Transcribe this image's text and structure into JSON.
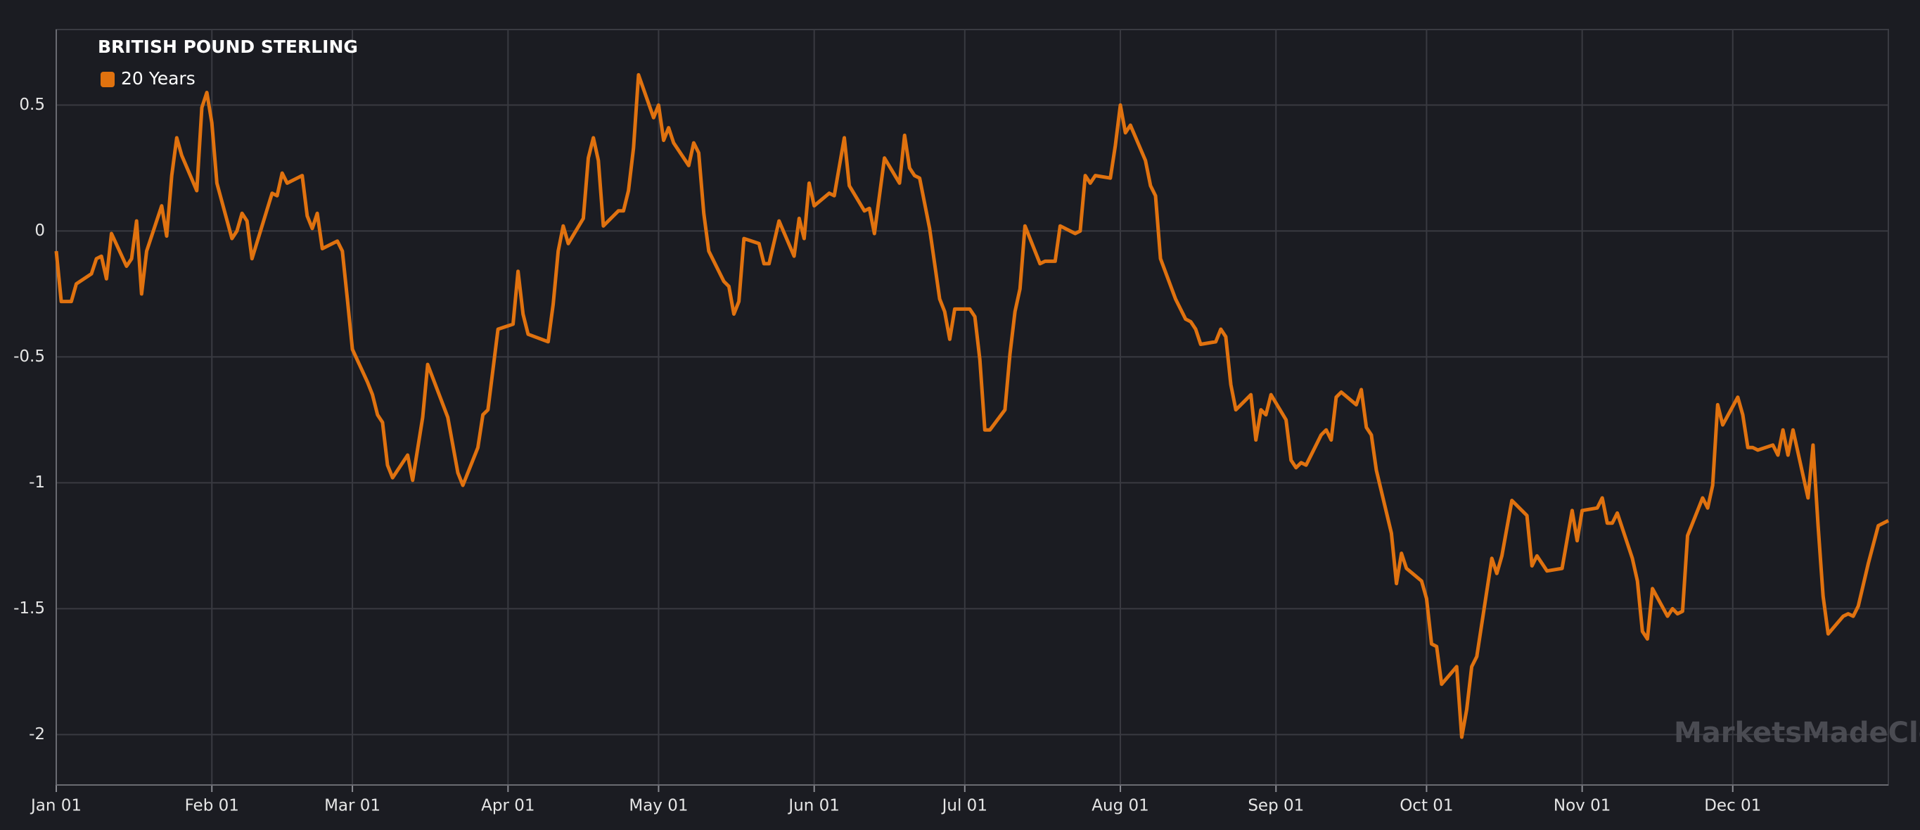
{
  "chart_data": {
    "type": "line",
    "title": "BRITISH POUND STERLING",
    "watermark": "MarketsMadeClear.com",
    "x": [
      0,
      1,
      3,
      4,
      7,
      8,
      9,
      10,
      11,
      14,
      15,
      16,
      17,
      18,
      21,
      22,
      23,
      24,
      25,
      28,
      29,
      30,
      31,
      32,
      35,
      36,
      37,
      38,
      39,
      43,
      44,
      45,
      46,
      49,
      50,
      51,
      52,
      53,
      56,
      57,
      58,
      59,
      62,
      63,
      64,
      65,
      66,
      67,
      70,
      71,
      73,
      74,
      78,
      80,
      81,
      84,
      85,
      86,
      88,
      91,
      92,
      93,
      94,
      98,
      99,
      100,
      101,
      102,
      105,
      106,
      107,
      108,
      109,
      111,
      112,
      113,
      114,
      115,
      116,
      119,
      120,
      121,
      122,
      123,
      126,
      127,
      128,
      129,
      130,
      133,
      134,
      135,
      136,
      137,
      140,
      141,
      142,
      144,
      147,
      148,
      149,
      150,
      151,
      154,
      155,
      157,
      158,
      161,
      162,
      163,
      165,
      168,
      169,
      170,
      171,
      172,
      174,
      176,
      177,
      178,
      179,
      182,
      183,
      184,
      185,
      186,
      189,
      190,
      191,
      192,
      193,
      196,
      197,
      199,
      200,
      203,
      204,
      205,
      206,
      207,
      210,
      211,
      212,
      213,
      214,
      217,
      218,
      219,
      220,
      223,
      225,
      226,
      227,
      228,
      231,
      232,
      233,
      234,
      235,
      237,
      238,
      239,
      240,
      241,
      242,
      245,
      246,
      247,
      248,
      249,
      252,
      253,
      254,
      255,
      256,
      259,
      260,
      261,
      262,
      263,
      266,
      267,
      268,
      269,
      272,
      273,
      274,
      275,
      276,
      279,
      280,
      281,
      282,
      283,
      286,
      287,
      288,
      290,
      293,
      294,
      295,
      297,
      300,
      302,
      303,
      304,
      307,
      308,
      309,
      310,
      311,
      314,
      315,
      316,
      317,
      318,
      321,
      322,
      323,
      324,
      325,
      328,
      329,
      330,
      331,
      332,
      335,
      336,
      337,
      338,
      339,
      342,
      343,
      344,
      345,
      346,
      349,
      350,
      351,
      352,
      353,
      356,
      357,
      358,
      359,
      361,
      363,
      365
    ],
    "series": [
      {
        "name": "20 Years",
        "color": "#e0720f",
        "values": [
          -0.08,
          -0.28,
          -0.28,
          -0.21,
          -0.17,
          -0.11,
          -0.1,
          -0.19,
          -0.01,
          -0.14,
          -0.11,
          0.04,
          -0.25,
          -0.08,
          0.1,
          -0.02,
          0.22,
          0.37,
          0.3,
          0.16,
          0.49,
          0.55,
          0.43,
          0.19,
          -0.03,
          0,
          0.07,
          0.04,
          -0.11,
          0.15,
          0.14,
          0.23,
          0.19,
          0.22,
          0.06,
          0.01,
          0.07,
          -0.07,
          -0.04,
          -0.08,
          -0.27,
          -0.47,
          -0.6,
          -0.65,
          -0.73,
          -0.76,
          -0.93,
          -0.98,
          -0.89,
          -0.99,
          -0.74,
          -0.53,
          -0.74,
          -0.96,
          -1.01,
          -0.86,
          -0.73,
          -0.71,
          -0.39,
          -0.37,
          -0.16,
          -0.33,
          -0.41,
          -0.44,
          -0.29,
          -0.08,
          0.02,
          -0.05,
          0.05,
          0.29,
          0.37,
          0.28,
          0.02,
          0.06,
          0.08,
          0.08,
          0.16,
          0.33,
          0.62,
          0.45,
          0.5,
          0.36,
          0.41,
          0.35,
          0.26,
          0.35,
          0.31,
          0.07,
          -0.08,
          -0.2,
          -0.22,
          -0.33,
          -0.28,
          -0.03,
          -0.05,
          -0.13,
          -0.13,
          0.04,
          -0.1,
          0.05,
          -0.03,
          0.19,
          0.1,
          0.15,
          0.14,
          0.37,
          0.18,
          0.08,
          0.09,
          -0.01,
          0.29,
          0.19,
          0.38,
          0.25,
          0.22,
          0.21,
          0.01,
          -0.27,
          -0.32,
          -0.43,
          -0.31,
          -0.31,
          -0.34,
          -0.51,
          -0.79,
          -0.79,
          -0.71,
          -0.49,
          -0.32,
          -0.23,
          0.02,
          -0.13,
          -0.12,
          -0.12,
          0.02,
          -0.01,
          0,
          0.22,
          0.19,
          0.22,
          0.21,
          0.34,
          0.5,
          0.39,
          0.42,
          0.28,
          0.18,
          0.14,
          -0.11,
          -0.27,
          -0.35,
          -0.36,
          -0.39,
          -0.45,
          -0.44,
          -0.39,
          -0.42,
          -0.61,
          -0.71,
          -0.67,
          -0.65,
          -0.83,
          -0.71,
          -0.73,
          -0.65,
          -0.75,
          -0.91,
          -0.94,
          -0.92,
          -0.93,
          -0.81,
          -0.79,
          -0.83,
          -0.66,
          -0.64,
          -0.69,
          -0.63,
          -0.78,
          -0.81,
          -0.95,
          -1.2,
          -1.4,
          -1.28,
          -1.34,
          -1.39,
          -1.46,
          -1.64,
          -1.65,
          -1.8,
          -1.73,
          -2.01,
          -1.9,
          -1.73,
          -1.69,
          -1.3,
          -1.36,
          -1.29,
          -1.07,
          -1.13,
          -1.33,
          -1.29,
          -1.35,
          -1.34,
          -1.11,
          -1.23,
          -1.11,
          -1.1,
          -1.06,
          -1.16,
          -1.16,
          -1.12,
          -1.3,
          -1.39,
          -1.59,
          -1.62,
          -1.42,
          -1.53,
          -1.5,
          -1.52,
          -1.51,
          -1.21,
          -1.06,
          -1.1,
          -1.01,
          -0.69,
          -0.77,
          -0.66,
          -0.73,
          -0.86,
          -0.86,
          -0.87,
          -0.85,
          -0.89,
          -0.79,
          -0.89,
          -0.79,
          -1.06,
          -0.85,
          -1.17,
          -1.45,
          -1.6,
          -1.53,
          -1.52,
          -1.53,
          -1.49,
          -1.32,
          -1.17,
          -1.15
        ]
      }
    ],
    "xlim": [
      0,
      365
    ],
    "xticks": [
      {
        "value": 0,
        "label": "Jan 01"
      },
      {
        "value": 31,
        "label": "Feb 01"
      },
      {
        "value": 59,
        "label": "Mar 01"
      },
      {
        "value": 90,
        "label": "Apr 01"
      },
      {
        "value": 120,
        "label": "May 01"
      },
      {
        "value": 151,
        "label": "Jun 01"
      },
      {
        "value": 181,
        "label": "Jul 01"
      },
      {
        "value": 212,
        "label": "Aug 01"
      },
      {
        "value": 243,
        "label": "Sep 01"
      },
      {
        "value": 273,
        "label": "Oct 01"
      },
      {
        "value": 304,
        "label": "Nov 01"
      },
      {
        "value": 334,
        "label": "Dec 01"
      }
    ],
    "ylim": [
      -2.2,
      0.8
    ],
    "yticks": [
      0.5,
      0,
      -0.5,
      -1,
      -1.5,
      -2
    ],
    "grid": true
  }
}
